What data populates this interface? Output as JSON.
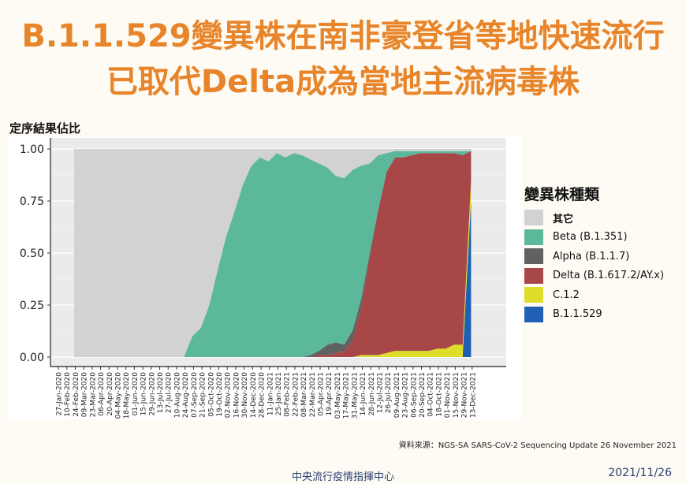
{
  "title_line1": "B.1.1.529變異株在南非豪登省等地快速流行",
  "title_line2": "已取代Delta成為當地主流病毒株",
  "source": "資料來源：NGS-SA SARS-CoV-2 Sequencing Update 26 November 2021",
  "footer_org": "中央流行疫情指揮中心",
  "footer_date": "2021/11/26",
  "chart_data": {
    "type": "area",
    "ylabel": "定序結果佔比",
    "xlabel": "",
    "ylim": [
      0,
      1.0
    ],
    "yticks": [
      "0.00",
      "0.25",
      "0.50",
      "0.75",
      "1.00"
    ],
    "x": [
      "27-Jan-2020",
      "10-Feb-2020",
      "24-Feb-2020",
      "09-Mar-2020",
      "23-Mar-2020",
      "06-Apr-2020",
      "20-Apr-2020",
      "04-May-2020",
      "18-May-2020",
      "01-Jun-2020",
      "15-Jun-2020",
      "29-Jun-2020",
      "13-Jul-2020",
      "27-Jul-2020",
      "10-Aug-2020",
      "24-Aug-2020",
      "07-Sep-2020",
      "21-Sep-2020",
      "05-Oct-2020",
      "19-Oct-2020",
      "02-Nov-2020",
      "16-Nov-2020",
      "30-Nov-2020",
      "14-Dec-2020",
      "28-Dec-2020",
      "11-Jan-2021",
      "25-Jan-2021",
      "08-Feb-2021",
      "22-Feb-2021",
      "08-Mar-2021",
      "22-Mar-2021",
      "05-Apr-2021",
      "19-Apr-2021",
      "03-May-2021",
      "17-May-2021",
      "31-May-2021",
      "14-Jun-2021",
      "28-Jun-2021",
      "12-Jul-2021",
      "26-Jul-2021",
      "09-Aug-2021",
      "23-Aug-2021",
      "06-Sep-2021",
      "20-Sep-2021",
      "04-Oct-2021",
      "18-Oct-2021",
      "01-Nov-2021",
      "15-Nov-2021",
      "29-Nov-2021",
      "13-Dec-2021"
    ],
    "legend_title": "變異株種類",
    "legend_position": "right",
    "series": [
      {
        "name": "B.1.1.529",
        "color": "#1f5fb4",
        "values": [
          0,
          0,
          0,
          0,
          0,
          0,
          0,
          0,
          0,
          0,
          0,
          0,
          0,
          0,
          0,
          0,
          0,
          0,
          0,
          0,
          0,
          0,
          0,
          0,
          0,
          0,
          0,
          0,
          0,
          0,
          0,
          0,
          0,
          0,
          0,
          0,
          0,
          0,
          0,
          0,
          0,
          0,
          0,
          0,
          0,
          0,
          0,
          0.75,
          null,
          null
        ]
      },
      {
        "name": "C.1.2",
        "color": "#e0dd2a",
        "values": [
          0,
          0,
          0,
          0,
          0,
          0,
          0,
          0,
          0,
          0,
          0,
          0,
          0,
          0,
          0,
          0,
          0,
          0,
          0,
          0,
          0,
          0,
          0,
          0,
          0,
          0,
          0,
          0,
          0,
          0,
          0,
          0,
          0,
          0,
          0.01,
          0.01,
          0.01,
          0.02,
          0.03,
          0.03,
          0.03,
          0.03,
          0.03,
          0.04,
          0.04,
          0.06,
          0.06,
          0.1,
          null,
          null
        ]
      },
      {
        "name": "Delta (B.1.617.2/AY.x)",
        "color": "#a74747",
        "values": [
          0,
          0,
          0,
          0,
          0,
          0,
          0,
          0,
          0,
          0,
          0,
          0,
          0,
          0,
          0,
          0,
          0,
          0,
          0,
          0,
          0,
          0,
          0,
          0,
          0,
          0,
          0,
          0,
          0,
          0.01,
          0.01,
          0.02,
          0.03,
          0.08,
          0.23,
          0.47,
          0.69,
          0.87,
          0.93,
          0.93,
          0.94,
          0.95,
          0.95,
          0.94,
          0.94,
          0.92,
          0.91,
          0.14,
          null,
          null
        ]
      },
      {
        "name": "Alpha (B.1.1.7)",
        "color": "#616161",
        "values": [
          0,
          0,
          0,
          0,
          0,
          0,
          0,
          0,
          0,
          0,
          0,
          0,
          0,
          0,
          0,
          0,
          0,
          0,
          0,
          0,
          0,
          0,
          0,
          0,
          0,
          0,
          0,
          0,
          0.01,
          0.02,
          0.05,
          0.05,
          0.03,
          0.05,
          0.04,
          0.02,
          0.01,
          0,
          0,
          0,
          0,
          0,
          0,
          0,
          0,
          0,
          0,
          0,
          null,
          null
        ]
      },
      {
        "name": "Beta (B.1.351)",
        "color": "#5cb89a",
        "values": [
          0,
          0,
          0,
          0,
          0,
          0,
          0,
          0,
          0,
          0,
          0,
          0,
          0,
          0,
          0.1,
          0.14,
          0.25,
          0.42,
          0.58,
          0.7,
          0.83,
          0.92,
          0.96,
          0.94,
          0.98,
          0.96,
          0.98,
          0.97,
          0.94,
          0.9,
          0.85,
          0.8,
          0.8,
          0.77,
          0.64,
          0.43,
          0.26,
          0.09,
          0.03,
          0.03,
          0.02,
          0.01,
          0.01,
          0.01,
          0.01,
          0.01,
          0.02,
          0,
          null,
          null
        ]
      },
      {
        "name": "其它",
        "color": "#d2d2d2",
        "values": [
          1,
          1,
          1,
          1,
          1,
          1,
          1,
          1,
          1,
          1,
          1,
          1,
          1,
          1,
          0.9,
          0.86,
          0.75,
          0.58,
          0.42,
          0.3,
          0.17,
          0.08,
          0.04,
          0.06,
          0.02,
          0.04,
          0.02,
          0.03,
          0.05,
          0.07,
          0.09,
          0.13,
          0.14,
          0.1,
          0.08,
          0.07,
          0.03,
          0.02,
          0.01,
          0.01,
          0.01,
          0.01,
          0.01,
          0.01,
          0.01,
          0.01,
          0.01,
          0.01,
          null,
          null
        ]
      }
    ]
  }
}
